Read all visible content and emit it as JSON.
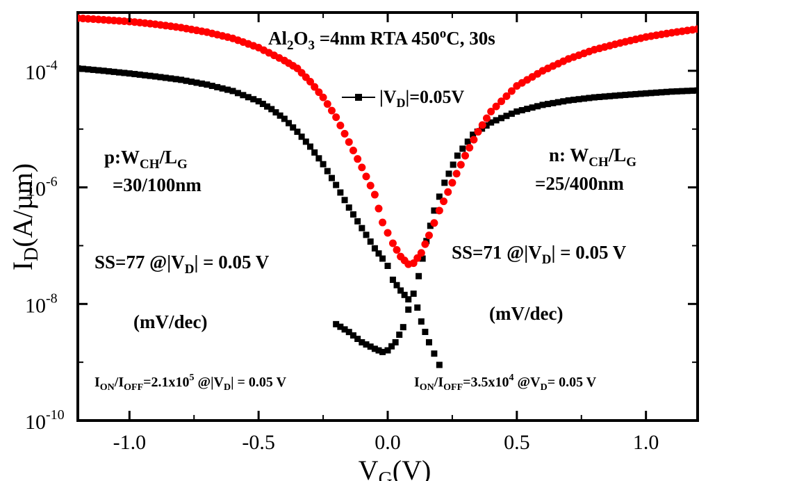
{
  "chart_data": {
    "type": "scatter",
    "title": "",
    "xlabel": "V",
    "xlabel_sub": "G",
    "xlabel_unit": "(V)",
    "ylabel": "I",
    "ylabel_sub": "D",
    "ylabel_unit": "(A/µm)",
    "yscale": "log",
    "xlim": [
      -1.2,
      1.2
    ],
    "ylim": [
      1e-10,
      0.001
    ],
    "xticks": [
      -1.0,
      -0.5,
      0.0,
      0.5,
      1.0
    ],
    "xtick_labels": [
      "-1.0",
      "-0.5",
      "0.0",
      "0.5",
      "1.0"
    ],
    "yticks": [
      1e-10,
      1e-08,
      1e-06,
      0.0001
    ],
    "ytick_labels": [
      {
        "base": "10",
        "exp": "-10"
      },
      {
        "base": "10",
        "exp": "-8"
      },
      {
        "base": "10",
        "exp": "-6"
      },
      {
        "base": "10",
        "exp": "-4"
      }
    ],
    "legend": {
      "label": "|V",
      "sub": "D",
      "rest": "|=0.05V",
      "placement": "top-center",
      "marker": "square"
    },
    "series": [
      {
        "name": "|VD|=0.05V",
        "color": "#000000",
        "marker": "square",
        "points": [
          [
            -1.2,
            0.00011
          ],
          [
            -1.1,
            0.0001
          ],
          [
            -1.0,
            9e-05
          ],
          [
            -0.9,
            8e-05
          ],
          [
            -0.8,
            7e-05
          ],
          [
            -0.7,
            5.8e-05
          ],
          [
            -0.6,
            4.5e-05
          ],
          [
            -0.5,
            3e-05
          ],
          [
            -0.45,
            2.2e-05
          ],
          [
            -0.4,
            1.5e-05
          ],
          [
            -0.35,
            9e-06
          ],
          [
            -0.3,
            5e-06
          ],
          [
            -0.25,
            2.5e-06
          ],
          [
            -0.2,
            1.1e-06
          ],
          [
            -0.15,
            4.5e-07
          ],
          [
            -0.1,
            2e-07
          ],
          [
            -0.05,
            9e-08
          ],
          [
            -0.02,
            6e-08
          ],
          [
            0.0,
            4.5e-08
          ],
          [
            0.02,
            2.6e-08
          ],
          [
            0.05,
            1.7e-08
          ],
          [
            0.08,
            1.2e-08
          ],
          [
            -0.2,
            4.5e-09
          ],
          [
            -0.15,
            3.3e-09
          ],
          [
            -0.1,
            2.2e-09
          ],
          [
            -0.05,
            1.7e-09
          ],
          [
            -0.02,
            1.5e-09
          ],
          [
            0.0,
            1.6e-09
          ],
          [
            0.03,
            2.2e-09
          ],
          [
            0.06,
            4e-09
          ],
          [
            0.08,
            8e-09
          ],
          [
            0.1,
            1.5e-08
          ],
          [
            0.13,
            5e-09
          ],
          [
            0.16,
            2.2e-09
          ],
          [
            0.2,
            9e-10
          ],
          [
            0.12,
            3e-08
          ],
          [
            0.15,
            1.2e-07
          ],
          [
            0.18,
            4e-07
          ],
          [
            0.22,
            1.2e-06
          ],
          [
            0.27,
            3.5e-06
          ],
          [
            0.33,
            8e-06
          ],
          [
            0.4,
            1.3e-05
          ],
          [
            0.5,
            2e-05
          ],
          [
            0.6,
            2.6e-05
          ],
          [
            0.7,
            3.1e-05
          ],
          [
            0.8,
            3.5e-05
          ],
          [
            0.9,
            3.8e-05
          ],
          [
            1.0,
            4.1e-05
          ],
          [
            1.1,
            4.4e-05
          ],
          [
            1.2,
            4.6e-05
          ]
        ]
      },
      {
        "name": "",
        "color": "#ff0000",
        "marker": "circle",
        "points": [
          [
            -1.2,
            0.0008
          ],
          [
            -1.1,
            0.00075
          ],
          [
            -1.0,
            0.0007
          ],
          [
            -0.9,
            0.00063
          ],
          [
            -0.8,
            0.00055
          ],
          [
            -0.7,
            0.00046
          ],
          [
            -0.6,
            0.00036
          ],
          [
            -0.5,
            0.00025
          ],
          [
            -0.4,
            0.00015
          ],
          [
            -0.35,
            0.00011
          ],
          [
            -0.3,
            6.5e-05
          ],
          [
            -0.25,
            3.5e-05
          ],
          [
            -0.2,
            1.6e-05
          ],
          [
            -0.15,
            6e-06
          ],
          [
            -0.1,
            2.2e-06
          ],
          [
            -0.05,
            7.5e-07
          ],
          [
            -0.02,
            2.5e-07
          ],
          [
            0.02,
            1.1e-07
          ],
          [
            0.05,
            6.5e-08
          ],
          [
            0.08,
            4.8e-08
          ],
          [
            0.1,
            5e-08
          ],
          [
            0.13,
            7.5e-08
          ],
          [
            0.16,
            1.5e-07
          ],
          [
            0.2,
            4e-07
          ],
          [
            0.25,
            1.2e-06
          ],
          [
            0.3,
            3.5e-06
          ],
          [
            0.35,
            9e-06
          ],
          [
            0.4,
            2e-05
          ],
          [
            0.5,
            5.5e-05
          ],
          [
            0.6,
            0.0001
          ],
          [
            0.7,
            0.00016
          ],
          [
            0.8,
            0.00023
          ],
          [
            0.9,
            0.0003
          ],
          [
            1.0,
            0.00038
          ],
          [
            1.1,
            0.00045
          ],
          [
            1.2,
            0.00052
          ]
        ]
      }
    ],
    "annotations": {
      "top": "Al2O3 =4nm RTA 450oC, 30s",
      "p_line1": "p:WCH/LG",
      "p_line2": "=30/100nm",
      "n_line1": "n: WCH/LG",
      "n_line2": "=25/400nm",
      "ss_left": "SS=77 @|VD| = 0.05 V",
      "ss_right": "SS=71 @|VD| = 0.05 V",
      "unit_left": "(mV/dec)",
      "unit_right": "(mV/dec)",
      "ion_left": "ION/IOFF=2.1x105 @|VD| = 0.05 V",
      "ion_right": "ION/IOFF=3.5x104 @VD= 0.05 V"
    },
    "grid": false
  }
}
